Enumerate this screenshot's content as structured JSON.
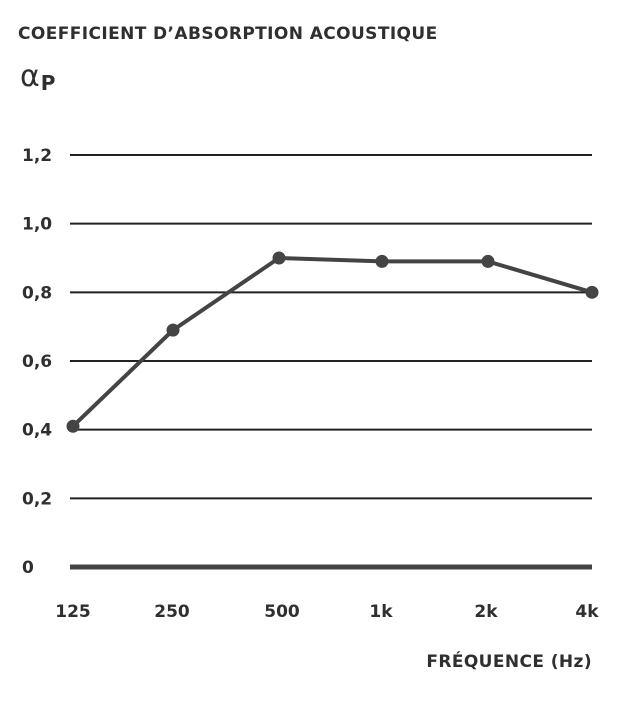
{
  "chart_data": {
    "type": "line",
    "title": "COEFFICIENT D’ABSORPTION ACOUSTIQUE",
    "ylabel": {
      "main": "α",
      "sub": "P"
    },
    "xlabel": "FRÉQUENCE (Hz)",
    "categories": [
      "125",
      "250",
      "500",
      "1k",
      "2k",
      "4k"
    ],
    "values": [
      0.41,
      0.69,
      0.9,
      0.89,
      0.89,
      0.8
    ],
    "ylim": [
      0,
      1.2
    ],
    "yticks": [
      0,
      0.2,
      0.4,
      0.6,
      0.8,
      1.0,
      1.2
    ],
    "ytick_labels": [
      "0",
      "0,2",
      "0,4",
      "0,6",
      "0,8",
      "1,0",
      "1,2"
    ],
    "grid": true,
    "colors": {
      "line": "#444444",
      "grid": "#222222",
      "text": "#2f2f2f"
    }
  }
}
